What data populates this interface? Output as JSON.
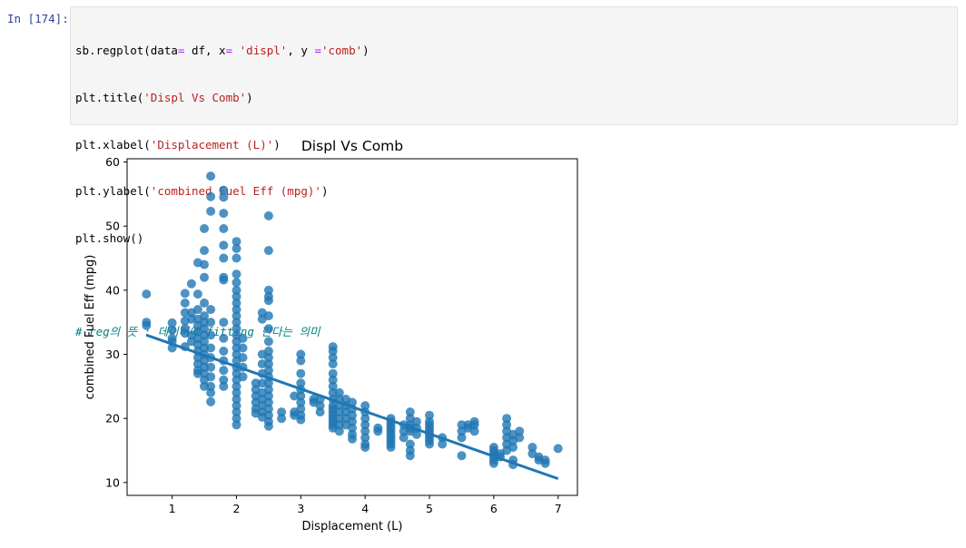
{
  "prompt": "In [174]:",
  "code": {
    "line1": {
      "a": "sb.regplot(data",
      "op1": "=",
      "b": " df, x",
      "op2": "=",
      "c": " ",
      "s1": "'displ'",
      "d": ", y ",
      "op3": "=",
      "s2": "'comb'",
      "e": ")"
    },
    "line2": {
      "a": "plt.title(",
      "s": "'Displ Vs Comb'",
      "b": ")"
    },
    "line3": {
      "a": "plt.xlabel(",
      "s": "'Displacement (L)'",
      "b": ")"
    },
    "line4": {
      "a": "plt.ylabel(",
      "s": "'combined Fuel Eff (mpg)'",
      "b": ")"
    },
    "line5": "plt.show()",
    "comment": "# reg의 뜻 : 데이터에 fitting 한다는 의미"
  },
  "colors": {
    "prompt": "#303f9f",
    "string": "#ba2121",
    "operator": "#aa22ff",
    "comment": "#008080",
    "points": "#1f77b4"
  },
  "chart_data": {
    "type": "scatter",
    "title": "Displ Vs Comb",
    "xlabel": "Displacement (L)",
    "ylabel": "combined Fuel Eff (mpg)",
    "xlim": [
      0.3,
      7.3
    ],
    "ylim": [
      8.0,
      60.5
    ],
    "xticks": [
      1,
      2,
      3,
      4,
      5,
      6,
      7
    ],
    "yticks": [
      10,
      20,
      30,
      40,
      50,
      60
    ],
    "grid": false,
    "regression_line": {
      "x": [
        0.6,
        7.0
      ],
      "y": [
        33.0,
        10.6
      ]
    },
    "point_groups": [
      {
        "x": 0.6,
        "y": [
          39.4,
          35.0,
          34.5
        ]
      },
      {
        "x": 1.0,
        "y": [
          34.9,
          33.8,
          32.5,
          31.0,
          32.0
        ]
      },
      {
        "x": 1.2,
        "y": [
          39.5,
          38.0,
          36.5,
          35.2,
          34.0,
          33.3,
          31.2
        ]
      },
      {
        "x": 1.3,
        "y": [
          41.0,
          36.5,
          35.5,
          33.0,
          32.0
        ]
      },
      {
        "x": 1.4,
        "y": [
          44.3,
          39.4,
          37.0,
          35.5,
          34.5,
          33.5,
          32.5,
          31.5,
          30.5,
          29.5,
          28.5,
          27.5,
          27.0
        ]
      },
      {
        "x": 1.5,
        "y": [
          49.6,
          46.2,
          44.0,
          42.0,
          38.0,
          36.0,
          35.0,
          34.0,
          33.0,
          32.0,
          31.0,
          30.0,
          29.0,
          28.0,
          27.0,
          26.0,
          25.0
        ]
      },
      {
        "x": 1.6,
        "y": [
          57.8,
          54.6,
          52.3,
          37.0,
          35.0,
          33.0,
          31.0,
          29.5,
          28.0,
          26.5,
          25.0,
          24.0,
          22.6
        ]
      },
      {
        "x": 1.8,
        "y": [
          55.6,
          54.5,
          52.0,
          49.6,
          47.0,
          45.0,
          42.0,
          41.6,
          35.0,
          32.5,
          30.5,
          29.0,
          27.5,
          26.0,
          25.0
        ]
      },
      {
        "x": 2.0,
        "y": [
          47.6,
          46.5,
          45.0,
          42.5,
          41.2,
          40.0,
          39.0,
          38.0,
          37.0,
          36.0,
          35.0,
          34.0,
          33.0,
          32.0,
          31.0,
          30.0,
          29.0,
          28.0,
          27.0,
          26.0,
          25.0,
          24.0,
          23.0,
          22.0,
          21.0,
          20.0,
          19.0
        ]
      },
      {
        "x": 2.1,
        "y": [
          32.5,
          31.0,
          29.5,
          28.0,
          26.5
        ]
      },
      {
        "x": 2.3,
        "y": [
          25.5,
          24.5,
          23.5,
          22.5,
          21.5,
          20.8
        ]
      },
      {
        "x": 2.4,
        "y": [
          36.5,
          35.5,
          30.0,
          28.5,
          27.0,
          25.5,
          24.0,
          23.0,
          22.0,
          21.0,
          20.2
        ]
      },
      {
        "x": 2.5,
        "y": [
          51.6,
          46.2,
          40.0,
          39.0,
          38.4,
          36.0,
          34.0,
          32.0,
          30.5,
          29.5,
          28.5,
          27.5,
          26.5,
          25.5,
          24.5,
          23.5,
          22.5,
          21.5,
          20.5,
          19.5,
          18.8
        ]
      },
      {
        "x": 2.7,
        "y": [
          21.0,
          20.0
        ]
      },
      {
        "x": 2.9,
        "y": [
          23.5,
          21.0,
          20.5
        ]
      },
      {
        "x": 3.0,
        "y": [
          30.0,
          29.0,
          27.0,
          25.5,
          24.5,
          23.5,
          22.5,
          21.5,
          20.5,
          19.8
        ]
      },
      {
        "x": 3.2,
        "y": [
          23.0,
          22.5
        ]
      },
      {
        "x": 3.3,
        "y": [
          23.0,
          22.0,
          21.0
        ]
      },
      {
        "x": 3.5,
        "y": [
          31.2,
          30.5,
          29.5,
          28.5,
          27.0,
          26.0,
          25.0,
          24.0,
          23.0,
          22.0,
          21.5,
          21.0,
          20.5,
          20.0,
          19.5,
          19.0,
          18.5
        ]
      },
      {
        "x": 3.6,
        "y": [
          24.0,
          23.0,
          22.0,
          21.0,
          20.0,
          19.0,
          18.0
        ]
      },
      {
        "x": 3.7,
        "y": [
          23.0,
          22.0,
          21.0,
          20.0,
          19.0
        ]
      },
      {
        "x": 3.8,
        "y": [
          22.5,
          21.5,
          20.5,
          19.5,
          18.5,
          17.5,
          16.8
        ]
      },
      {
        "x": 4.0,
        "y": [
          22.0,
          21.0,
          20.0,
          19.0,
          18.0,
          17.0,
          16.0,
          15.5
        ]
      },
      {
        "x": 4.2,
        "y": [
          18.5,
          18.0
        ]
      },
      {
        "x": 4.4,
        "y": [
          20.0,
          19.5,
          19.0,
          18.5,
          18.0,
          17.5,
          17.0,
          16.5,
          16.0,
          15.5
        ]
      },
      {
        "x": 4.6,
        "y": [
          19.0,
          18.0,
          17.0
        ]
      },
      {
        "x": 4.7,
        "y": [
          21.0,
          20.0,
          19.0,
          18.5,
          18.0,
          16.0,
          15.0,
          14.2
        ]
      },
      {
        "x": 4.8,
        "y": [
          19.5,
          18.5,
          17.5
        ]
      },
      {
        "x": 5.0,
        "y": [
          20.5,
          19.5,
          19.0,
          18.5,
          18.0,
          17.5,
          17.0,
          16.5,
          16.0
        ]
      },
      {
        "x": 5.2,
        "y": [
          17.0,
          16.0
        ]
      },
      {
        "x": 5.5,
        "y": [
          19.0,
          18.0,
          17.0,
          14.2
        ]
      },
      {
        "x": 5.6,
        "y": [
          19.0,
          18.5
        ]
      },
      {
        "x": 5.7,
        "y": [
          19.5,
          19.0,
          18.0
        ]
      },
      {
        "x": 6.0,
        "y": [
          15.5,
          15.0,
          14.5,
          14.0,
          13.5,
          13.0
        ]
      },
      {
        "x": 6.1,
        "y": [
          14.5,
          14.0
        ]
      },
      {
        "x": 6.2,
        "y": [
          20.0,
          19.0,
          18.0,
          17.0,
          16.0,
          15.0
        ]
      },
      {
        "x": 6.3,
        "y": [
          17.5,
          16.5,
          15.5,
          13.5,
          12.8
        ]
      },
      {
        "x": 6.4,
        "y": [
          18.0,
          17.0
        ]
      },
      {
        "x": 6.6,
        "y": [
          15.5,
          14.5
        ]
      },
      {
        "x": 6.7,
        "y": [
          14.0,
          13.5
        ]
      },
      {
        "x": 6.8,
        "y": [
          13.5,
          13.0
        ]
      },
      {
        "x": 7.0,
        "y": [
          15.3
        ]
      }
    ]
  }
}
